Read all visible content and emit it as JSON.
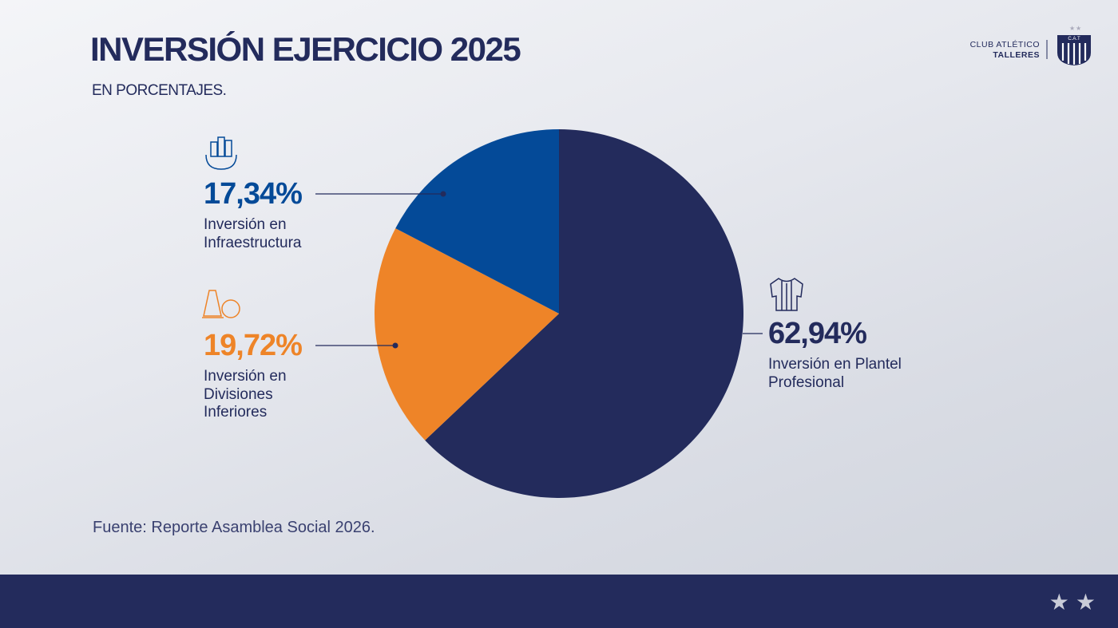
{
  "header": {
    "title": "INVERSIÓN EJERCICIO 2025",
    "subtitle": "EN PORCENTAJES."
  },
  "logo": {
    "line1": "CLUB ATLÉTICO",
    "line2": "TALLERES",
    "badge": "C.A.T"
  },
  "chart_data": {
    "type": "pie",
    "categories": [
      "Inversión en Plantel Profesional",
      "Inversión en Divisiones Inferiores",
      "Inversión en Infraestructura"
    ],
    "values": [
      62.94,
      19.72,
      17.34
    ],
    "value_labels": [
      "62,94%",
      "19,72%",
      "17,34%"
    ],
    "colors": [
      "#232b5c",
      "#ee8428",
      "#044a98"
    ],
    "source": "Fuente: Reporte Asamblea Social 2026."
  }
}
